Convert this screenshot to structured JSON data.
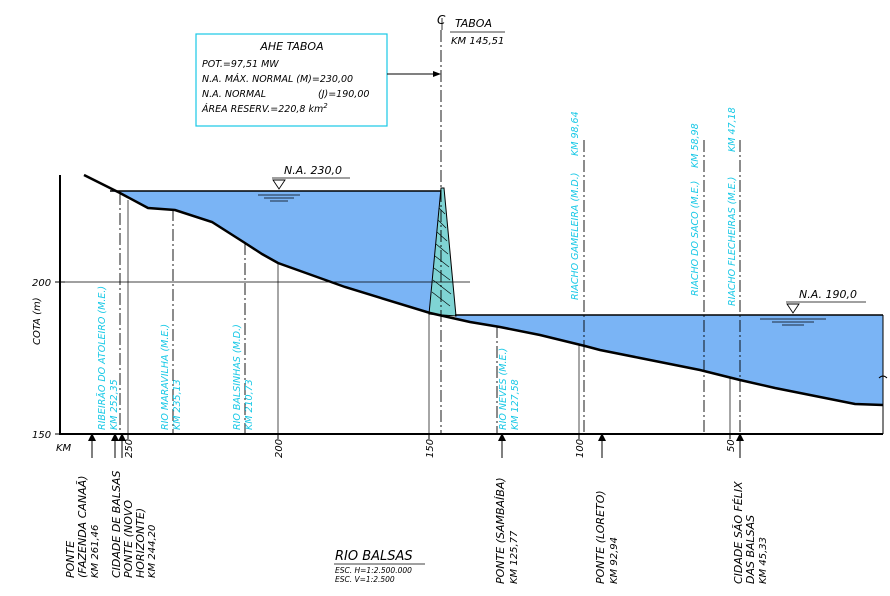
{
  "colors": {
    "water": "#7ab4f5",
    "line": "#000000",
    "cyan_text": "#18c8e6",
    "dam_fill": "#7fd4d4"
  },
  "info_box": {
    "title": "AHE TABOA",
    "pot": "POT.=97,51 MW",
    "na_max": "N.A. MÁX. NORMAL (M)=230,00",
    "na_normal": "N.A. NORMAL",
    "na_normal_value": "(J)=190,00",
    "area": "ÁREA RESERV.=220,8 km",
    "area_exp": "2"
  },
  "dam": {
    "cl_mark": "C",
    "name": "TABOA",
    "km": "KM 145,51"
  },
  "levels": {
    "upstream": "N.A. 230,0",
    "downstream": "N.A. 190,0"
  },
  "axis": {
    "y_label": "COTA (m)",
    "y_ticks": [
      "200",
      "150"
    ],
    "x_label": "KM",
    "x_ticks": [
      "250",
      "200",
      "150",
      "100",
      "50"
    ]
  },
  "tributaries": [
    {
      "name": "RIBEIRÃO DO ATOLEIRO (M.E.)",
      "km": "KM 252,35"
    },
    {
      "name": "RIO MARAVILHA (M.E.)",
      "km": "KM 235,13"
    },
    {
      "name": "RIO BALSINHAS (M.D.)",
      "km": "KM 210,73"
    },
    {
      "name": "RIO NEVES (M.E.)",
      "km": "KM 127,58"
    },
    {
      "name": "RIACHO GAMELEIRA (M.D.)",
      "km": "KM 98,64"
    },
    {
      "name": "RIACHO DO SACO (M.E.)",
      "km": "KM 58,98"
    },
    {
      "name": "RIACHO FLECHEIRAS (M.E.)",
      "km": "KM 47,18"
    }
  ],
  "landmarks": [
    {
      "l1": "PONTE",
      "l2": "(FAZENDA CANAÃ)",
      "l3": "KM 261,46"
    },
    {
      "l1": "CIDADE DE BALSAS",
      "l2": "PONTE (NOVO",
      "l3": "HORIZONTE)",
      "l4": "KM 244,20"
    },
    {
      "l1": "PONTE (SAMBAÍBA)",
      "l2": "KM 125,77"
    },
    {
      "l1": "PONTE (LORETO)",
      "l2": "KM 92,94"
    },
    {
      "l1": "CIDADE SÃO FÉLIX",
      "l2": "DAS BALSAS",
      "l3": "KM 45,33"
    }
  ],
  "footer": {
    "river": "RIO BALSAS",
    "scale_h": "ESC. H=1:2.500.000",
    "scale_v": "ESC. V=1:2.500"
  }
}
